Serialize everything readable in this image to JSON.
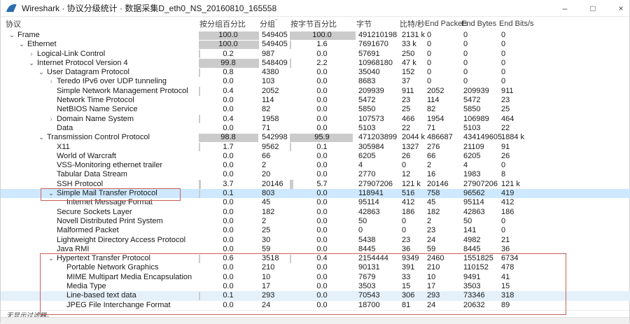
{
  "window": {
    "title": "Wireshark · 协议分级统计 · 数据采集D_eth0_NS_20160810_165558",
    "controls": {
      "minimize": "–",
      "maximize": "□",
      "close": "×"
    }
  },
  "colors": {
    "selection": "#cde8ff",
    "soft_selection": "#e4f1fb",
    "bar": "#cbcbcb",
    "annotation": "#c95f58",
    "logo_blue": "#2b6daf"
  },
  "table": {
    "columns": [
      "协议",
      "按分组百分比",
      "分组",
      "按字节百分比",
      "字节",
      "比特/秒",
      "End Packets",
      "End Bytes",
      "End Bits/s"
    ],
    "rows": [
      {
        "name": "Frame",
        "indent": 0,
        "chevron": "expanded",
        "selected": "none",
        "pct_packets": "100.0",
        "packets": "549405",
        "pct_bytes": "100.0",
        "bytes": "491210198",
        "bits_s": "2131 k",
        "end_packets": "0",
        "end_bytes": "0",
        "end_bits_s": "0"
      },
      {
        "name": "Ethernet",
        "indent": 1,
        "chevron": "expanded",
        "selected": "none",
        "pct_packets": "100.0",
        "packets": "549405",
        "pct_bytes": "1.6",
        "bytes": "7691670",
        "bits_s": "33 k",
        "end_packets": "0",
        "end_bytes": "0",
        "end_bits_s": "0"
      },
      {
        "name": "Logical-Link Control",
        "indent": 2,
        "chevron": "collapsed",
        "selected": "none",
        "pct_packets": "0.2",
        "packets": "987",
        "pct_bytes": "0.0",
        "bytes": "57691",
        "bits_s": "250",
        "end_packets": "0",
        "end_bytes": "0",
        "end_bits_s": "0"
      },
      {
        "name": "Internet Protocol Version 4",
        "indent": 2,
        "chevron": "expanded",
        "selected": "none",
        "pct_packets": "99.8",
        "packets": "548409",
        "pct_bytes": "2.2",
        "bytes": "10968180",
        "bits_s": "47 k",
        "end_packets": "0",
        "end_bytes": "0",
        "end_bits_s": "0"
      },
      {
        "name": "User Datagram Protocol",
        "indent": 3,
        "chevron": "expanded",
        "selected": "none",
        "pct_packets": "0.8",
        "packets": "4380",
        "pct_bytes": "0.0",
        "bytes": "35040",
        "bits_s": "152",
        "end_packets": "0",
        "end_bytes": "0",
        "end_bits_s": "0"
      },
      {
        "name": "Teredo IPv6 over UDP tunneling",
        "indent": 4,
        "chevron": "collapsed",
        "selected": "none",
        "pct_packets": "0.0",
        "packets": "103",
        "pct_bytes": "0.0",
        "bytes": "8683",
        "bits_s": "37",
        "end_packets": "0",
        "end_bytes": "0",
        "end_bits_s": "0"
      },
      {
        "name": "Simple Network Management Protocol",
        "indent": 4,
        "chevron": "none",
        "selected": "none",
        "pct_packets": "0.4",
        "packets": "2052",
        "pct_bytes": "0.0",
        "bytes": "209939",
        "bits_s": "911",
        "end_packets": "2052",
        "end_bytes": "209939",
        "end_bits_s": "911"
      },
      {
        "name": "Network Time Protocol",
        "indent": 4,
        "chevron": "none",
        "selected": "none",
        "pct_packets": "0.0",
        "packets": "114",
        "pct_bytes": "0.0",
        "bytes": "5472",
        "bits_s": "23",
        "end_packets": "114",
        "end_bytes": "5472",
        "end_bits_s": "23"
      },
      {
        "name": "NetBIOS Name Service",
        "indent": 4,
        "chevron": "none",
        "selected": "none",
        "pct_packets": "0.0",
        "packets": "82",
        "pct_bytes": "0.0",
        "bytes": "5850",
        "bits_s": "25",
        "end_packets": "82",
        "end_bytes": "5850",
        "end_bits_s": "25"
      },
      {
        "name": "Domain Name System",
        "indent": 4,
        "chevron": "collapsed",
        "selected": "none",
        "pct_packets": "0.4",
        "packets": "1958",
        "pct_bytes": "0.0",
        "bytes": "107573",
        "bits_s": "466",
        "end_packets": "1954",
        "end_bytes": "106989",
        "end_bits_s": "464"
      },
      {
        "name": "Data",
        "indent": 4,
        "chevron": "none",
        "selected": "none",
        "pct_packets": "0.0",
        "packets": "71",
        "pct_bytes": "0.0",
        "bytes": "5103",
        "bits_s": "22",
        "end_packets": "71",
        "end_bytes": "5103",
        "end_bits_s": "22"
      },
      {
        "name": "Transmission Control Protocol",
        "indent": 3,
        "chevron": "expanded",
        "selected": "none",
        "pct_packets": "98.8",
        "packets": "542998",
        "pct_bytes": "95.9",
        "bytes": "471203899",
        "bits_s": "2044 k",
        "end_packets": "486687",
        "end_bytes": "434149605",
        "end_bits_s": "1884 k"
      },
      {
        "name": "X11",
        "indent": 4,
        "chevron": "none",
        "selected": "none",
        "pct_packets": "1.7",
        "packets": "9562",
        "pct_bytes": "0.1",
        "bytes": "305984",
        "bits_s": "1327",
        "end_packets": "276",
        "end_bytes": "21109",
        "end_bits_s": "91"
      },
      {
        "name": "World of Warcraft",
        "indent": 4,
        "chevron": "none",
        "selected": "none",
        "pct_packets": "0.0",
        "packets": "66",
        "pct_bytes": "0.0",
        "bytes": "6205",
        "bits_s": "26",
        "end_packets": "66",
        "end_bytes": "6205",
        "end_bits_s": "26"
      },
      {
        "name": "VSS-Monitoring ethernet trailer",
        "indent": 4,
        "chevron": "none",
        "selected": "none",
        "pct_packets": "0.0",
        "packets": "2",
        "pct_bytes": "0.0",
        "bytes": "4",
        "bits_s": "0",
        "end_packets": "2",
        "end_bytes": "4",
        "end_bits_s": "0"
      },
      {
        "name": "Tabular Data Stream",
        "indent": 4,
        "chevron": "none",
        "selected": "none",
        "pct_packets": "0.0",
        "packets": "20",
        "pct_bytes": "0.0",
        "bytes": "2770",
        "bits_s": "12",
        "end_packets": "16",
        "end_bytes": "1983",
        "end_bits_s": "8"
      },
      {
        "name": "SSH Protocol",
        "indent": 4,
        "chevron": "none",
        "selected": "none",
        "pct_packets": "3.7",
        "packets": "20146",
        "pct_bytes": "5.7",
        "bytes": "27907206",
        "bits_s": "121 k",
        "end_packets": "20146",
        "end_bytes": "27907206",
        "end_bits_s": "121 k"
      },
      {
        "name": "Simple Mail Transfer Protocol",
        "indent": 4,
        "chevron": "expanded",
        "selected": "selected",
        "pct_packets": "0.1",
        "packets": "803",
        "pct_bytes": "0.0",
        "bytes": "118941",
        "bits_s": "516",
        "end_packets": "758",
        "end_bytes": "96562",
        "end_bits_s": "419"
      },
      {
        "name": "Internet Message Format",
        "indent": 5,
        "chevron": "none",
        "selected": "none",
        "pct_packets": "0.0",
        "packets": "45",
        "pct_bytes": "0.0",
        "bytes": "95114",
        "bits_s": "412",
        "end_packets": "45",
        "end_bytes": "95114",
        "end_bits_s": "412"
      },
      {
        "name": "Secure Sockets Layer",
        "indent": 4,
        "chevron": "none",
        "selected": "none",
        "pct_packets": "0.0",
        "packets": "182",
        "pct_bytes": "0.0",
        "bytes": "42863",
        "bits_s": "186",
        "end_packets": "182",
        "end_bytes": "42863",
        "end_bits_s": "186"
      },
      {
        "name": "Novell Distributed Print System",
        "indent": 4,
        "chevron": "none",
        "selected": "none",
        "pct_packets": "0.0",
        "packets": "2",
        "pct_bytes": "0.0",
        "bytes": "50",
        "bits_s": "0",
        "end_packets": "2",
        "end_bytes": "50",
        "end_bits_s": "0"
      },
      {
        "name": "Malformed Packet",
        "indent": 4,
        "chevron": "none",
        "selected": "none",
        "pct_packets": "0.0",
        "packets": "25",
        "pct_bytes": "0.0",
        "bytes": "0",
        "bits_s": "0",
        "end_packets": "23",
        "end_bytes": "141",
        "end_bits_s": "0"
      },
      {
        "name": "Lightweight Directory Access Protocol",
        "indent": 4,
        "chevron": "none",
        "selected": "none",
        "pct_packets": "0.0",
        "packets": "30",
        "pct_bytes": "0.0",
        "bytes": "5438",
        "bits_s": "23",
        "end_packets": "24",
        "end_bytes": "4982",
        "end_bits_s": "21"
      },
      {
        "name": "Java RMI",
        "indent": 4,
        "chevron": "none",
        "selected": "none",
        "pct_packets": "0.0",
        "packets": "59",
        "pct_bytes": "0.0",
        "bytes": "8445",
        "bits_s": "36",
        "end_packets": "59",
        "end_bytes": "8445",
        "end_bits_s": "36"
      },
      {
        "name": "Hypertext Transfer Protocol",
        "indent": 4,
        "chevron": "expanded",
        "selected": "none",
        "pct_packets": "0.6",
        "packets": "3518",
        "pct_bytes": "0.4",
        "bytes": "2154444",
        "bits_s": "9349",
        "end_packets": "2460",
        "end_bytes": "1551825",
        "end_bits_s": "6734"
      },
      {
        "name": "Portable Network Graphics",
        "indent": 5,
        "chevron": "none",
        "selected": "none",
        "pct_packets": "0.0",
        "packets": "210",
        "pct_bytes": "0.0",
        "bytes": "90131",
        "bits_s": "391",
        "end_packets": "210",
        "end_bytes": "110152",
        "end_bits_s": "478"
      },
      {
        "name": "MIME Multipart Media Encapsulation",
        "indent": 5,
        "chevron": "none",
        "selected": "none",
        "pct_packets": "0.0",
        "packets": "10",
        "pct_bytes": "0.0",
        "bytes": "7679",
        "bits_s": "33",
        "end_packets": "10",
        "end_bytes": "9491",
        "end_bits_s": "41"
      },
      {
        "name": "Media Type",
        "indent": 5,
        "chevron": "none",
        "selected": "none",
        "pct_packets": "0.0",
        "packets": "17",
        "pct_bytes": "0.0",
        "bytes": "3503",
        "bits_s": "15",
        "end_packets": "17",
        "end_bytes": "3503",
        "end_bits_s": "15"
      },
      {
        "name": "Line-based text data",
        "indent": 5,
        "chevron": "none",
        "selected": "soft",
        "pct_packets": "0.1",
        "packets": "293",
        "pct_bytes": "0.0",
        "bytes": "70543",
        "bits_s": "306",
        "end_packets": "293",
        "end_bytes": "73346",
        "end_bits_s": "318"
      },
      {
        "name": "JPEG File Interchange Format",
        "indent": 5,
        "chevron": "none",
        "selected": "none",
        "pct_packets": "0.0",
        "packets": "24",
        "pct_bytes": "0.0",
        "bytes": "18700",
        "bits_s": "81",
        "end_packets": "24",
        "end_bytes": "20632",
        "end_bits_s": "89"
      }
    ]
  },
  "status": {
    "filter_text": "无显示过滤器。"
  },
  "icons": {
    "sort_indicator": "⌄",
    "chevron_expanded": "⌄",
    "chevron_collapsed": "›"
  }
}
